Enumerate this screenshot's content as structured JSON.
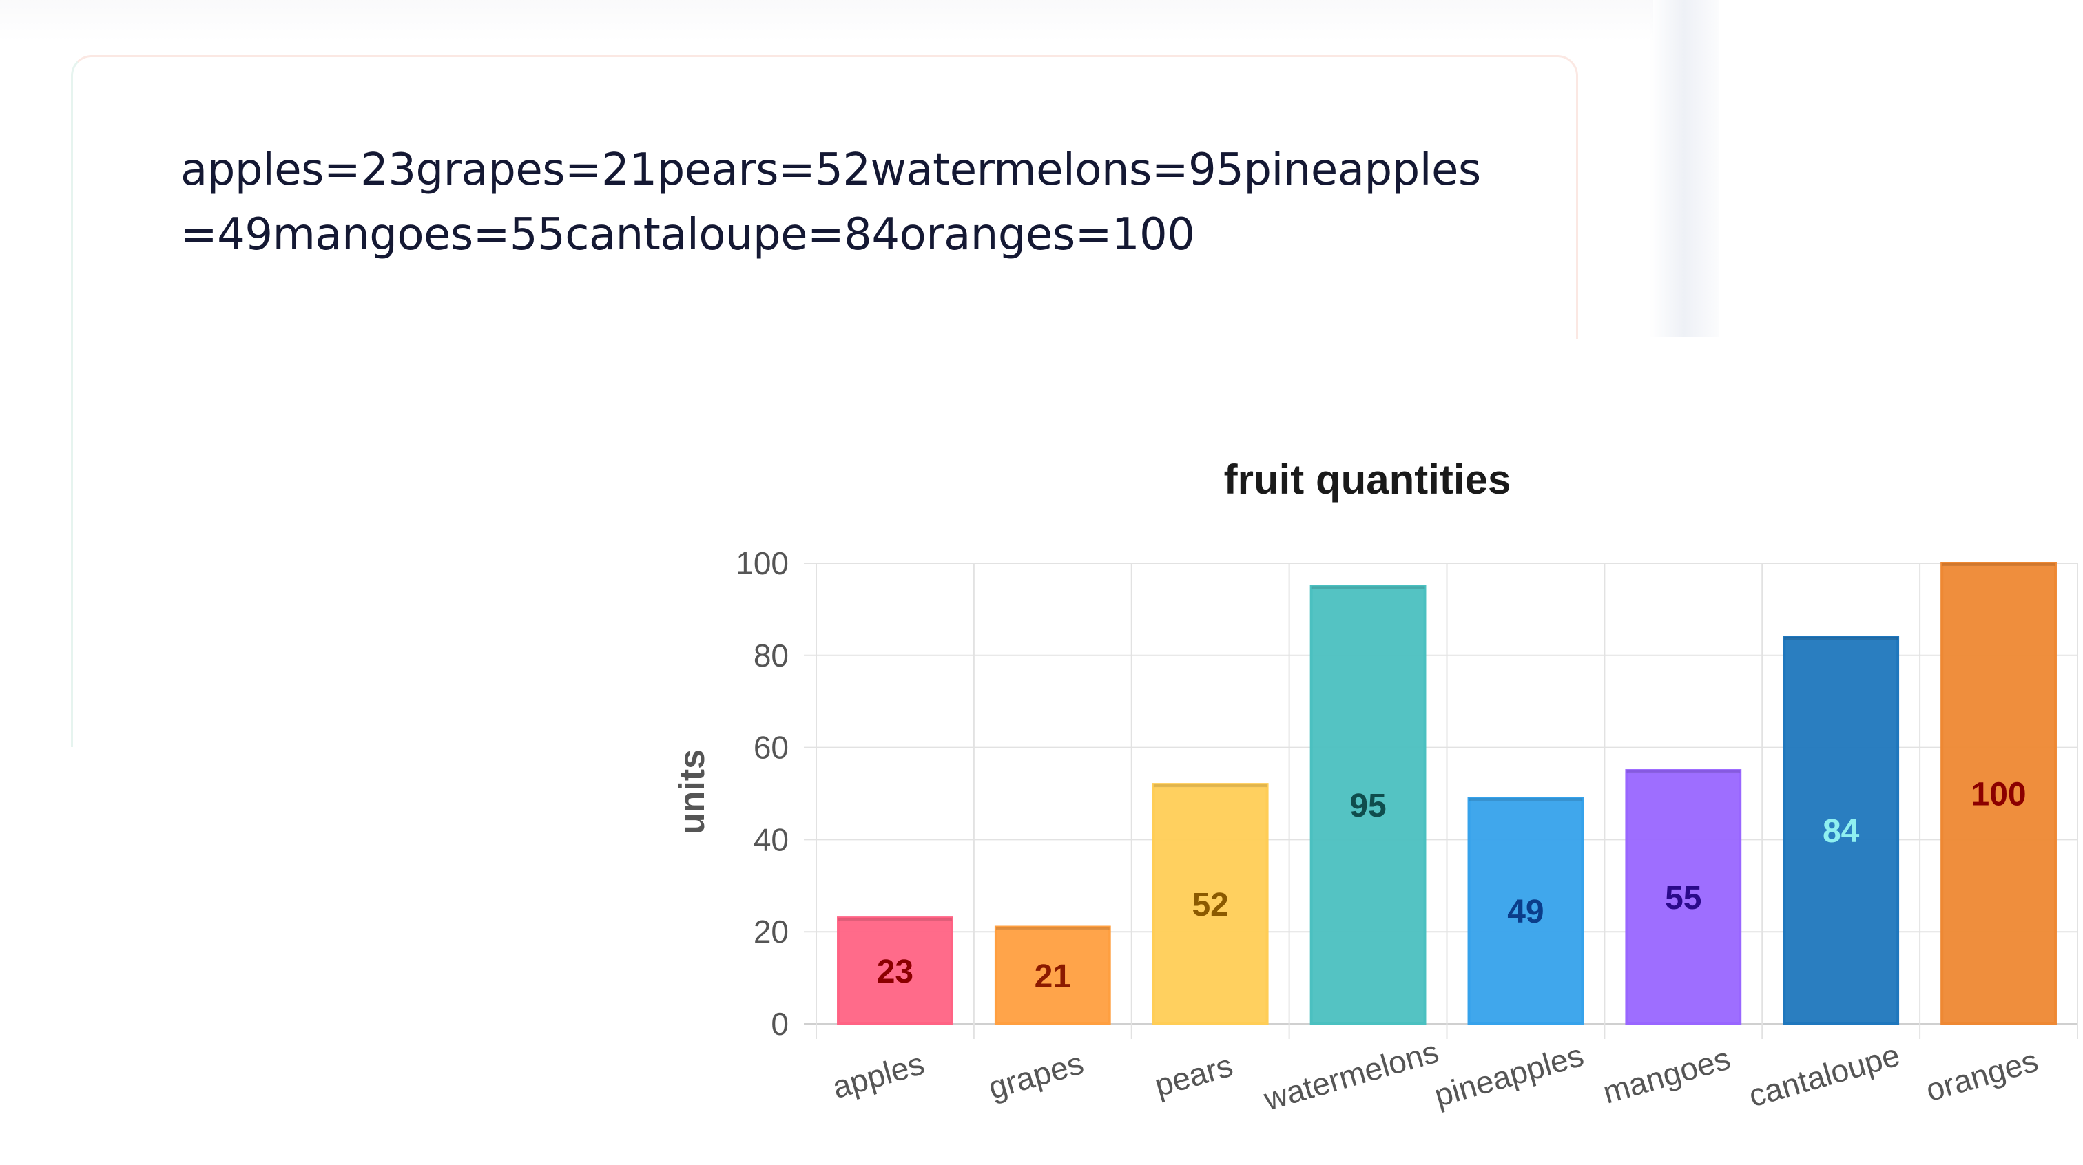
{
  "prompt": {
    "text": "apples=23grapes=21pears=52watermelons=95pineapples=49mangoes=55cantaloupe=84oranges=100"
  },
  "chart_data": {
    "type": "bar",
    "title": "fruit quantities",
    "xlabel": "",
    "ylabel": "units",
    "ylim": [
      0,
      100
    ],
    "yticks": [
      0,
      20,
      40,
      60,
      80,
      100
    ],
    "grid": true,
    "legend": "none",
    "categories": [
      "apples",
      "grapes",
      "pears",
      "watermelons",
      "pineapples",
      "mangoes",
      "cantaloupe",
      "oranges"
    ],
    "values": [
      23,
      21,
      52,
      95,
      49,
      55,
      84,
      100
    ],
    "bar_colors": [
      "#ff6384",
      "#ff9f40",
      "#ffcd56",
      "#4bc0c0",
      "#36a2eb",
      "#9966ff",
      "#1f77bd",
      "#ee8833"
    ],
    "label_colors": [
      "#8b0000",
      "#8b1a00",
      "#8b5a00",
      "#0f4d4d",
      "#0b3d8a",
      "#2a0a8a",
      "#8ff0f0",
      "#8b0000"
    ]
  }
}
